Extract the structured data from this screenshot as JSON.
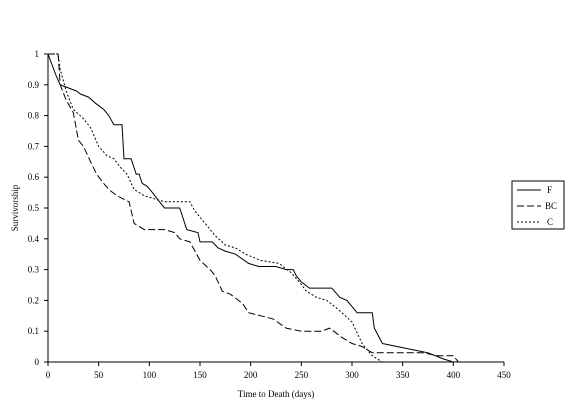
{
  "chart_data": {
    "type": "line",
    "title": "",
    "xlabel": "Time to Death (days)",
    "ylabel": "Survivorship",
    "xlim": [
      0,
      450
    ],
    "ylim": [
      0,
      1
    ],
    "xticks": [
      "0",
      "50",
      "100",
      "150",
      "200",
      "250",
      "300",
      "350",
      "400",
      "450"
    ],
    "yticks": [
      "0",
      "0.1",
      "0.2",
      "0.3",
      "0.4",
      "0.5",
      "0.6",
      "0.7",
      "0.8",
      "0.9",
      "1"
    ],
    "grid": false,
    "legend_position": "right",
    "series": [
      {
        "name": "F",
        "style": "solid",
        "points": [
          [
            0,
            1
          ],
          [
            8,
            0.93
          ],
          [
            12,
            0.9
          ],
          [
            20,
            0.89
          ],
          [
            28,
            0.88
          ],
          [
            32,
            0.87
          ],
          [
            40,
            0.86
          ],
          [
            47,
            0.84
          ],
          [
            55,
            0.82
          ],
          [
            60,
            0.8
          ],
          [
            65,
            0.77
          ],
          [
            73,
            0.77
          ],
          [
            75,
            0.66
          ],
          [
            82,
            0.66
          ],
          [
            87,
            0.61
          ],
          [
            90,
            0.61
          ],
          [
            93,
            0.58
          ],
          [
            98,
            0.57
          ],
          [
            103,
            0.55
          ],
          [
            110,
            0.52
          ],
          [
            115,
            0.5
          ],
          [
            130,
            0.5
          ],
          [
            137,
            0.43
          ],
          [
            148,
            0.42
          ],
          [
            150,
            0.39
          ],
          [
            162,
            0.39
          ],
          [
            168,
            0.37
          ],
          [
            175,
            0.36
          ],
          [
            185,
            0.35
          ],
          [
            198,
            0.32
          ],
          [
            208,
            0.31
          ],
          [
            225,
            0.31
          ],
          [
            235,
            0.3
          ],
          [
            242,
            0.3
          ],
          [
            245,
            0.28
          ],
          [
            250,
            0.26
          ],
          [
            258,
            0.24
          ],
          [
            270,
            0.24
          ],
          [
            280,
            0.24
          ],
          [
            288,
            0.21
          ],
          [
            295,
            0.2
          ],
          [
            300,
            0.18
          ],
          [
            305,
            0.16
          ],
          [
            315,
            0.16
          ],
          [
            320,
            0.16
          ],
          [
            322,
            0.11
          ],
          [
            330,
            0.06
          ],
          [
            345,
            0.05
          ],
          [
            360,
            0.04
          ],
          [
            375,
            0.03
          ],
          [
            390,
            0.01
          ],
          [
            400,
            0.0
          ]
        ]
      },
      {
        "name": "BC",
        "style": "dashed",
        "points": [
          [
            0,
            1
          ],
          [
            10,
            1
          ],
          [
            12,
            0.9
          ],
          [
            18,
            0.85
          ],
          [
            25,
            0.81
          ],
          [
            30,
            0.72
          ],
          [
            35,
            0.7
          ],
          [
            42,
            0.65
          ],
          [
            48,
            0.61
          ],
          [
            55,
            0.58
          ],
          [
            60,
            0.56
          ],
          [
            68,
            0.54
          ],
          [
            80,
            0.52
          ],
          [
            85,
            0.45
          ],
          [
            95,
            0.43
          ],
          [
            115,
            0.43
          ],
          [
            125,
            0.42
          ],
          [
            130,
            0.4
          ],
          [
            140,
            0.39
          ],
          [
            150,
            0.33
          ],
          [
            160,
            0.3
          ],
          [
            165,
            0.28
          ],
          [
            172,
            0.23
          ],
          [
            180,
            0.22
          ],
          [
            192,
            0.19
          ],
          [
            198,
            0.16
          ],
          [
            210,
            0.15
          ],
          [
            222,
            0.14
          ],
          [
            235,
            0.11
          ],
          [
            250,
            0.1
          ],
          [
            270,
            0.1
          ],
          [
            278,
            0.11
          ],
          [
            290,
            0.08
          ],
          [
            300,
            0.06
          ],
          [
            310,
            0.05
          ],
          [
            320,
            0.03
          ],
          [
            340,
            0.03
          ],
          [
            370,
            0.03
          ],
          [
            385,
            0.02
          ],
          [
            395,
            0.02
          ],
          [
            400,
            0.02
          ],
          [
            405,
            0.0
          ]
        ]
      },
      {
        "name": "C",
        "style": "dotted",
        "points": [
          [
            0,
            1
          ],
          [
            10,
            1
          ],
          [
            12,
            0.95
          ],
          [
            18,
            0.88
          ],
          [
            25,
            0.82
          ],
          [
            35,
            0.79
          ],
          [
            42,
            0.76
          ],
          [
            50,
            0.7
          ],
          [
            58,
            0.67
          ],
          [
            65,
            0.66
          ],
          [
            72,
            0.63
          ],
          [
            78,
            0.61
          ],
          [
            85,
            0.56
          ],
          [
            95,
            0.54
          ],
          [
            105,
            0.53
          ],
          [
            115,
            0.52
          ],
          [
            140,
            0.52
          ],
          [
            145,
            0.49
          ],
          [
            155,
            0.45
          ],
          [
            165,
            0.41
          ],
          [
            175,
            0.38
          ],
          [
            185,
            0.37
          ],
          [
            195,
            0.35
          ],
          [
            210,
            0.33
          ],
          [
            228,
            0.32
          ],
          [
            240,
            0.29
          ],
          [
            248,
            0.26
          ],
          [
            255,
            0.23
          ],
          [
            265,
            0.21
          ],
          [
            275,
            0.2
          ],
          [
            283,
            0.18
          ],
          [
            290,
            0.16
          ],
          [
            300,
            0.13
          ],
          [
            310,
            0.06
          ],
          [
            320,
            0.02
          ],
          [
            330,
            0.0
          ]
        ]
      }
    ]
  }
}
